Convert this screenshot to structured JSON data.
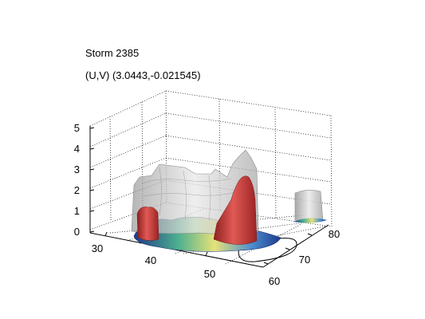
{
  "chart_data": {
    "type": "3d-isosurface",
    "title": "Storm 2385",
    "subtitle_prefix": "(U,V)",
    "subtitle_value": "(3.0443,-0.021545)",
    "axes": {
      "x": {
        "label": "",
        "ticks": [
          "30",
          "40",
          "50"
        ],
        "range": [
          28,
          56
        ]
      },
      "y": {
        "label": "",
        "ticks": [
          "60",
          "70",
          "80"
        ],
        "range": [
          60,
          82
        ]
      },
      "z": {
        "label": "",
        "ticks": [
          "0",
          "1",
          "2",
          "3",
          "4",
          "5"
        ],
        "range": [
          0,
          5
        ]
      }
    },
    "grid": true,
    "surfaces": [
      {
        "name": "outer-shell",
        "color": "#c8c8c8",
        "max_z": 3.5
      },
      {
        "name": "core",
        "color": "#d4443f",
        "max_z": 2.7
      },
      {
        "name": "base-layer",
        "color": "#3a6fb5",
        "max_z": 0.4
      }
    ]
  }
}
